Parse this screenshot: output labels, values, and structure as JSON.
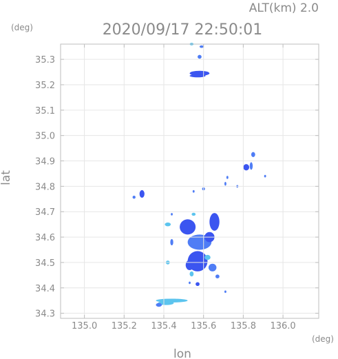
{
  "chart_data": {
    "type": "scatter",
    "title": "2020/09/17 22:50:01",
    "subtitle": "ALT(km) 2.0",
    "xlabel": "lon",
    "ylabel": "lat",
    "x_unit": "(deg)",
    "y_unit": "(deg)",
    "xlim": [
      134.88,
      136.18
    ],
    "ylim": [
      34.28,
      35.36
    ],
    "x_ticks": [
      "135.0",
      "135.2",
      "135.4",
      "135.6",
      "135.8",
      "136.0"
    ],
    "y_ticks": [
      "34.3",
      "34.4",
      "34.5",
      "34.6",
      "34.7",
      "34.8",
      "34.9",
      "35.0",
      "35.1",
      "35.2",
      "35.3"
    ],
    "grid": true,
    "colors": {
      "strong": "#3b55f0",
      "medium": "#4f7df5",
      "light": "#5cc4ee",
      "axis": "#bdbdbd",
      "text": "#8a8a8a"
    },
    "echoes": [
      {
        "lon": 135.54,
        "lat": 35.36,
        "w": 0.02,
        "h": 0.01,
        "c": "light"
      },
      {
        "lon": 135.59,
        "lat": 35.35,
        "w": 0.02,
        "h": 0.01,
        "c": "medium"
      },
      {
        "lon": 135.58,
        "lat": 35.31,
        "w": 0.02,
        "h": 0.015,
        "c": "medium"
      },
      {
        "lon": 135.58,
        "lat": 35.245,
        "w": 0.1,
        "h": 0.02,
        "c": "strong"
      },
      {
        "lon": 135.57,
        "lat": 35.235,
        "w": 0.08,
        "h": 0.012,
        "c": "strong"
      },
      {
        "lon": 135.85,
        "lat": 34.925,
        "w": 0.02,
        "h": 0.02,
        "c": "medium"
      },
      {
        "lon": 135.84,
        "lat": 34.88,
        "w": 0.015,
        "h": 0.03,
        "c": "medium"
      },
      {
        "lon": 135.815,
        "lat": 34.875,
        "w": 0.03,
        "h": 0.025,
        "c": "strong"
      },
      {
        "lon": 135.91,
        "lat": 34.84,
        "w": 0.01,
        "h": 0.01,
        "c": "medium"
      },
      {
        "lon": 135.72,
        "lat": 34.835,
        "w": 0.01,
        "h": 0.012,
        "c": "medium"
      },
      {
        "lon": 135.71,
        "lat": 34.81,
        "w": 0.01,
        "h": 0.015,
        "c": "medium"
      },
      {
        "lon": 135.6,
        "lat": 34.79,
        "w": 0.015,
        "h": 0.012,
        "c": "medium"
      },
      {
        "lon": 135.55,
        "lat": 34.78,
        "w": 0.01,
        "h": 0.01,
        "c": "medium"
      },
      {
        "lon": 135.77,
        "lat": 34.8,
        "w": 0.01,
        "h": 0.01,
        "c": "medium"
      },
      {
        "lon": 135.29,
        "lat": 34.77,
        "w": 0.025,
        "h": 0.03,
        "c": "strong"
      },
      {
        "lon": 135.25,
        "lat": 34.757,
        "w": 0.015,
        "h": 0.012,
        "c": "medium"
      },
      {
        "lon": 135.55,
        "lat": 34.69,
        "w": 0.02,
        "h": 0.012,
        "c": "light"
      },
      {
        "lon": 135.44,
        "lat": 34.69,
        "w": 0.01,
        "h": 0.01,
        "c": "medium"
      },
      {
        "lon": 135.655,
        "lat": 34.66,
        "w": 0.05,
        "h": 0.07,
        "c": "strong"
      },
      {
        "lon": 135.52,
        "lat": 34.64,
        "w": 0.08,
        "h": 0.06,
        "c": "strong"
      },
      {
        "lon": 135.42,
        "lat": 34.65,
        "w": 0.03,
        "h": 0.015,
        "c": "light"
      },
      {
        "lon": 135.58,
        "lat": 34.58,
        "w": 0.12,
        "h": 0.06,
        "c": "medium"
      },
      {
        "lon": 135.63,
        "lat": 34.6,
        "w": 0.05,
        "h": 0.04,
        "c": "strong"
      },
      {
        "lon": 135.44,
        "lat": 34.58,
        "w": 0.015,
        "h": 0.025,
        "c": "medium"
      },
      {
        "lon": 135.57,
        "lat": 34.505,
        "w": 0.1,
        "h": 0.08,
        "c": "strong"
      },
      {
        "lon": 135.53,
        "lat": 34.49,
        "w": 0.04,
        "h": 0.04,
        "c": "strong"
      },
      {
        "lon": 135.62,
        "lat": 34.52,
        "w": 0.03,
        "h": 0.02,
        "c": "light"
      },
      {
        "lon": 135.42,
        "lat": 34.5,
        "w": 0.02,
        "h": 0.015,
        "c": "light"
      },
      {
        "lon": 135.645,
        "lat": 34.48,
        "w": 0.04,
        "h": 0.03,
        "c": "medium"
      },
      {
        "lon": 135.54,
        "lat": 34.455,
        "w": 0.02,
        "h": 0.02,
        "c": "light"
      },
      {
        "lon": 135.67,
        "lat": 34.445,
        "w": 0.02,
        "h": 0.015,
        "c": "medium"
      },
      {
        "lon": 135.57,
        "lat": 34.415,
        "w": 0.02,
        "h": 0.015,
        "c": "strong"
      },
      {
        "lon": 135.53,
        "lat": 34.42,
        "w": 0.01,
        "h": 0.01,
        "c": "medium"
      },
      {
        "lon": 135.71,
        "lat": 34.385,
        "w": 0.01,
        "h": 0.01,
        "c": "medium"
      },
      {
        "lon": 135.44,
        "lat": 34.35,
        "w": 0.16,
        "h": 0.015,
        "c": "light"
      },
      {
        "lon": 135.41,
        "lat": 34.34,
        "w": 0.08,
        "h": 0.015,
        "c": "light"
      },
      {
        "lon": 135.375,
        "lat": 34.333,
        "w": 0.03,
        "h": 0.015,
        "c": "medium"
      }
    ]
  }
}
